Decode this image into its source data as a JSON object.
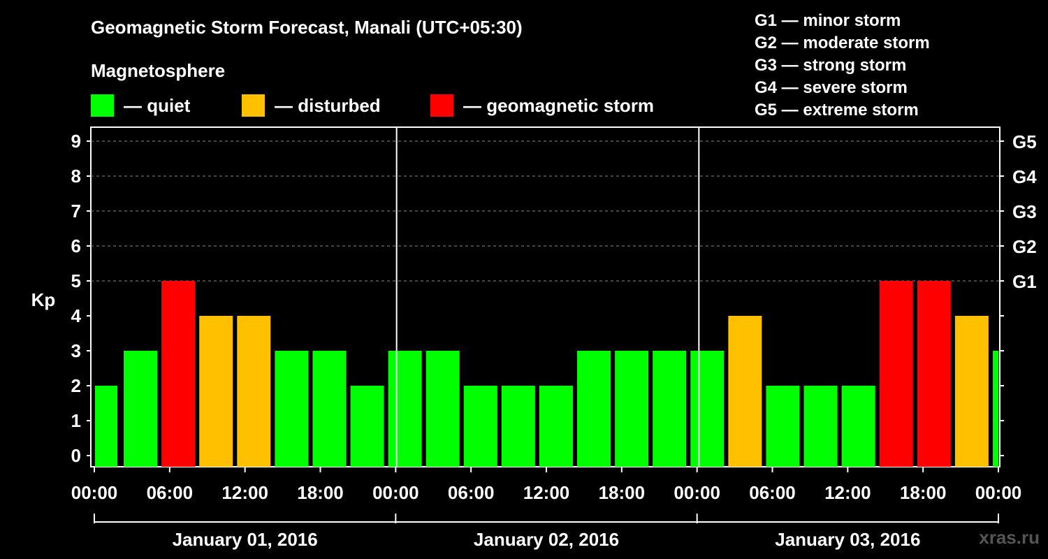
{
  "title": "Geomagnetic Storm Forecast, Manali (UTC+05:30)",
  "subtitle": "Magnetosphere",
  "legend": [
    {
      "label": "— quiet",
      "color": "#00ff00"
    },
    {
      "label": "— disturbed",
      "color": "#ffc000"
    },
    {
      "label": "— geomagnetic storm",
      "color": "#ff0000"
    }
  ],
  "g_scale": [
    "G1 — minor storm",
    "G2 — moderate storm",
    "G3 — strong storm",
    "G4 — severe storm",
    "G5 — extreme storm"
  ],
  "watermark": "xras.ru",
  "chart_data": {
    "type": "bar",
    "ylabel": "Kp",
    "ylim": [
      0,
      9
    ],
    "yticks": [
      "0",
      "1",
      "2",
      "3",
      "4",
      "5",
      "6",
      "7",
      "8",
      "9"
    ],
    "right_ticks": [
      {
        "kp": 5,
        "label": "G1"
      },
      {
        "kp": 6,
        "label": "G2"
      },
      {
        "kp": 7,
        "label": "G3"
      },
      {
        "kp": 8,
        "label": "G4"
      },
      {
        "kp": 9,
        "label": "G5"
      }
    ],
    "grid": true,
    "xtick_labels": [
      "00:00",
      "06:00",
      "12:00",
      "18:00",
      "00:00",
      "06:00",
      "12:00",
      "18:00",
      "00:00",
      "06:00",
      "12:00",
      "18:00",
      "00:00"
    ],
    "days": [
      "January 01, 2016",
      "January 02, 2016",
      "January 03, 2016"
    ],
    "values": [
      2,
      3,
      5,
      4,
      4,
      3,
      3,
      2,
      3,
      3,
      2,
      2,
      2,
      3,
      3,
      3,
      3,
      4,
      2,
      2,
      2,
      5,
      5,
      4,
      3
    ],
    "colors": {
      "quiet": "#00ff00",
      "disturbed": "#ffc000",
      "storm": "#ff0000"
    },
    "thresholds": {
      "disturbed_min": 4,
      "storm_min": 5
    }
  }
}
